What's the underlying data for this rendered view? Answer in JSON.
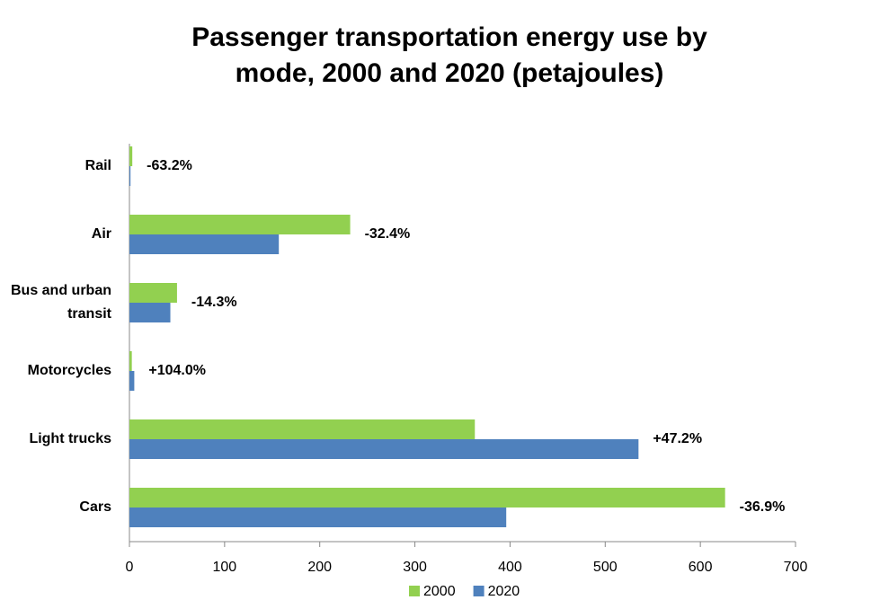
{
  "chart_data": {
    "type": "bar",
    "orientation": "horizontal",
    "title": "Passenger transportation energy use by mode, 2000 and 2020 (petajoules)",
    "categories": [
      "Rail",
      "Air",
      "Bus and urban transit",
      "Motorcycles",
      "Light trucks",
      "Cars"
    ],
    "series": [
      {
        "name": "2000",
        "color": "#92d050",
        "values": [
          3,
          232,
          50,
          2.5,
          363,
          626
        ]
      },
      {
        "name": "2020",
        "color": "#4f81bd",
        "values": [
          1.1,
          157,
          43,
          5.1,
          535,
          396
        ]
      }
    ],
    "annotations": [
      "-63.2%",
      "-32.4%",
      "-14.3%",
      "+104.0%",
      "+47.2%",
      "-36.9%"
    ],
    "xlim": [
      0,
      700
    ],
    "xticks": [
      0,
      100,
      200,
      300,
      400,
      500,
      600,
      700
    ],
    "grid": false,
    "legend": "bottom"
  }
}
